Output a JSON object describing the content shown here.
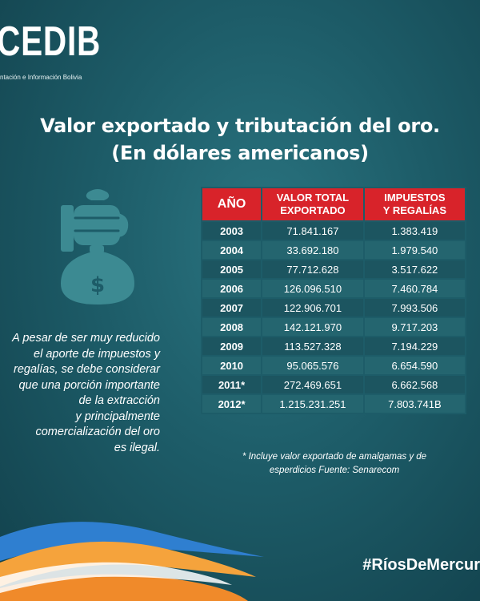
{
  "logo": {
    "word": "CEDIB",
    "subtitle": "ntación e Información Bolivia"
  },
  "title": {
    "line1": "Valor exportado y tributación del oro.",
    "line2": "(En dólares americanos)"
  },
  "table": {
    "headers": {
      "year": "AÑO",
      "value_line1": "VALOR TOTAL",
      "value_line2": "EXPORTADO",
      "tax_line1": "IMPUESTOS",
      "tax_line2": "Y REGALÍAS"
    },
    "rows": [
      {
        "year": "2003",
        "value": "71.841.167",
        "tax": "1.383.419"
      },
      {
        "year": "2004",
        "value": "33.692.180",
        "tax": "1.979.540"
      },
      {
        "year": "2005",
        "value": "77.712.628",
        "tax": "3.517.622"
      },
      {
        "year": "2006",
        "value": "126.096.510",
        "tax": "7.460.784"
      },
      {
        "year": "2007",
        "value": "122.906.701",
        "tax": "7.993.506"
      },
      {
        "year": "2008",
        "value": "142.121.970",
        "tax": "9.717.203"
      },
      {
        "year": "2009",
        "value": "113.527.328",
        "tax": "7.194.229"
      },
      {
        "year": "2010",
        "value": "95.065.576",
        "tax": "6.654.590"
      },
      {
        "year": "2011*",
        "value": "272.469.651",
        "tax": "6.662.568"
      },
      {
        "year": "2012*",
        "value": "1.215.231.251",
        "tax": "7.803.741B"
      }
    ]
  },
  "note": {
    "line1": "* Incluye valor exportado de amalgamas y de",
    "line2": "esperdicios Fuente: Senarecom"
  },
  "side_text": [
    "A pesar de ser muy reducido",
    "el aporte de impuestos y",
    "regalías, se debe considerar",
    "que una porción importante",
    "de la extracción",
    "y principalmente",
    "comercialización del oro",
    "es ilegal."
  ],
  "hashtag": "#RíosDeMercur",
  "colors": {
    "accent_red": "#d8232a",
    "background": "#1d5c68",
    "icon": "#3c8a92",
    "wave_orange": "#f5a33c",
    "wave_blue": "#2f7fd0"
  }
}
